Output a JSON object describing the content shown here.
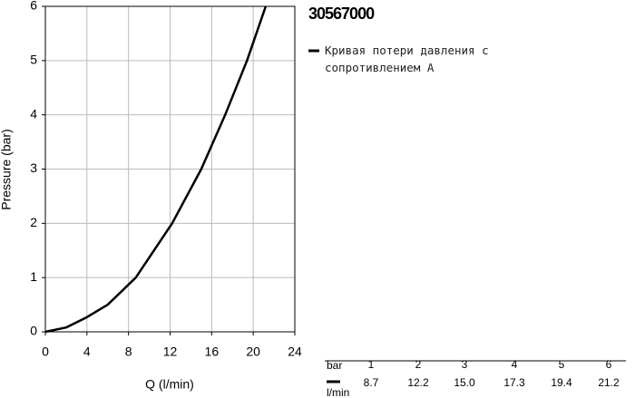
{
  "chart_data": {
    "type": "line",
    "title": "30567000",
    "xlabel": "Q (l/min)",
    "ylabel": "Pressure (bar)",
    "x": [
      0,
      2,
      4,
      6,
      8.7,
      12.2,
      15.0,
      17.3,
      19.4,
      21.2
    ],
    "series": [
      {
        "name": "Кривая потери давления с сопротивлением A",
        "color": "#000000",
        "values": [
          0,
          0.08,
          0.27,
          0.5,
          1,
          2,
          3,
          4,
          5,
          6
        ]
      }
    ],
    "xlim": [
      0,
      24
    ],
    "xticks": [
      0,
      4,
      8,
      12,
      16,
      20,
      24
    ],
    "ylim": [
      0,
      6
    ],
    "yticks": [
      0,
      1,
      2,
      3,
      4,
      5,
      6
    ],
    "grid": true
  },
  "table": {
    "pressure_label": "bar",
    "flow_label": "l/min",
    "pressure": [
      1,
      2,
      3,
      4,
      5,
      6
    ],
    "flow": [
      "8.7",
      "12.2",
      "15.0",
      "17.3",
      "19.4",
      "21.2"
    ]
  }
}
